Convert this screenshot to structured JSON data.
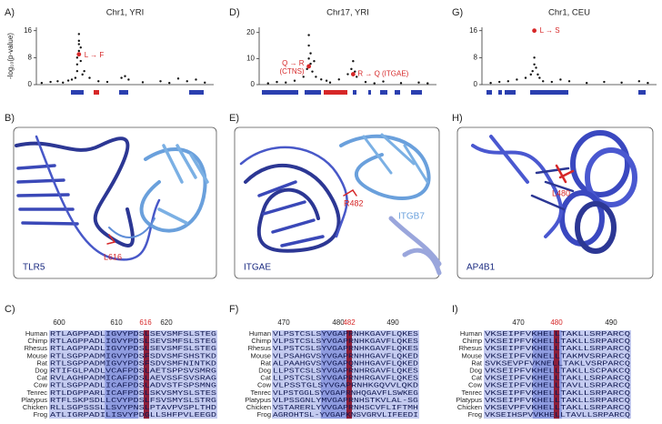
{
  "chart_data": [
    {
      "type": "scatter",
      "panel": "A)",
      "title": "Chr1, YRI",
      "ylabel": "-log₁₀(p-value)",
      "xlim": [
        0,
        100
      ],
      "ylim": [
        0,
        17
      ],
      "yticks": [
        0,
        8,
        16
      ],
      "series": [
        {
          "color": "#111111",
          "x": [
            3,
            8,
            12,
            15,
            18,
            20,
            22,
            23,
            23,
            23,
            24,
            24,
            24,
            24,
            25,
            25,
            26,
            27,
            30,
            35,
            40,
            48,
            50,
            52,
            60,
            70,
            75,
            80,
            85,
            90,
            95
          ],
          "values": [
            0.5,
            0.8,
            1,
            0.6,
            1.2,
            1.5,
            2,
            4,
            6,
            8,
            10,
            12,
            13,
            15,
            11,
            7,
            3,
            4,
            2,
            1,
            0.8,
            2,
            2.5,
            1.5,
            0.7,
            1,
            0.5,
            1.8,
            1,
            1.5,
            0.6
          ]
        },
        {
          "color": "#d62728",
          "x": [
            24
          ],
          "values": [
            9
          ]
        }
      ],
      "annotations": [
        "L → F"
      ]
    },
    {
      "type": "scatter",
      "panel": "D)",
      "title": "Chr17, YRI",
      "xlim": [
        0,
        100
      ],
      "ylim": [
        0,
        22
      ],
      "yticks": [
        0,
        10,
        20
      ],
      "series": [
        {
          "color": "#111111",
          "x": [
            5,
            10,
            15,
            20,
            25,
            27,
            28,
            28,
            28,
            29,
            29,
            30,
            31,
            32,
            35,
            38,
            40,
            45,
            50,
            52,
            53,
            54,
            55,
            60,
            65,
            70,
            80,
            90,
            95
          ],
          "values": [
            0.5,
            1,
            0.8,
            1.5,
            3,
            6,
            10,
            15,
            19,
            12,
            8,
            5,
            9,
            3,
            2,
            1.5,
            0.8,
            2,
            4,
            6,
            9,
            5,
            3,
            1,
            0.5,
            1.2,
            0.6,
            0.8,
            0.5
          ]
        },
        {
          "color": "#d62728",
          "x": [
            28,
            53
          ],
          "values": [
            7,
            4
          ]
        }
      ],
      "annotations": [
        "Q → R",
        "(CTNS)",
        "R → Q (ITGAE)"
      ]
    },
    {
      "type": "scatter",
      "panel": "G)",
      "title": "Chr1, CEU",
      "xlim": [
        0,
        100
      ],
      "ylim": [
        0,
        17
      ],
      "yticks": [
        0,
        8,
        16
      ],
      "series": [
        {
          "color": "#111111",
          "x": [
            5,
            10,
            15,
            20,
            25,
            28,
            29,
            30,
            30,
            31,
            32,
            33,
            35,
            40,
            45,
            50,
            60,
            70,
            80,
            90,
            95
          ],
          "values": [
            0.5,
            0.8,
            1,
            1.5,
            2,
            3,
            4,
            6,
            8,
            5,
            3,
            2,
            1,
            0.8,
            1.5,
            1,
            0.5,
            0.8,
            0.6,
            1,
            0.5
          ]
        },
        {
          "color": "#d62728",
          "x": [
            30
          ],
          "values": [
            16
          ]
        }
      ],
      "annotations": [
        "L → S"
      ]
    }
  ],
  "structures": [
    {
      "panel": "B)",
      "protein": "TLR5",
      "residue": "L616"
    },
    {
      "panel": "E)",
      "protein": "ITGAE",
      "residue": "R482",
      "partner": "ITGB7"
    },
    {
      "panel": "H)",
      "protein": "AP4B1",
      "residue": "L480"
    }
  ],
  "alignments": [
    {
      "panel": "C)",
      "positions": [
        600,
        610,
        616,
        620
      ],
      "position_colors": [
        "#222222",
        "#222222",
        "#d62728",
        "#222222"
      ],
      "species": [
        "Human",
        "Chimp",
        "Rhesus",
        "Mouse",
        "Rat",
        "Dog",
        "Cat",
        "Cow",
        "Tenrec",
        "Platypus",
        "Chicken",
        "Frog"
      ],
      "sequences": [
        "RTLAGPPADLIGVYPDSLSEVSMFSLSTEG",
        "RTLAGPPADLIGVYPDSLSEVSMFSLSTEG",
        "RTLAGPPADLIGVYPDSLSEVSMFSLSTEG",
        "RTLSGPPADMIGVYPDSFSDVSMFSHSTKD",
        "RTLSGPPADMIGVYPDSFSDVSMFNINTKD",
        "RTIFGLPADLVCAFPDSLAETSPPSVSMRG",
        "RVLAGHPADMICAFPDSLAEVSSFSVSRAG",
        "RTLSGPPADLICAFPDSLADVSTFSPSMNG",
        "RTLDGPPARLICAFPDSLSKVSMYSLSTES",
        "RTFLSKPSDLLCVYPDSLFSVSMYSLSTRG",
        "RLLSGPSSSLLSVYPNSLPTAVPVSPLTHD",
        "ATLIGRPADILISVYPDGLLSHFPVLEEGD"
      ]
    },
    {
      "panel": "F)",
      "positions": [
        470,
        480,
        482,
        490
      ],
      "position_colors": [
        "#222222",
        "#222222",
        "#d62728",
        "#222222"
      ],
      "species": [
        "Human",
        "Chimp",
        "Rhesus",
        "Mouse",
        "Rat",
        "Dog",
        "Cat",
        "Cow",
        "Tenrec",
        "Platypus",
        "Chicken",
        "Frog"
      ],
      "sequences": [
        "VLPSTCSLSYVGAPRNHKGAVFLQKES",
        "VLPSTCSLSYVGAPRNHKGAVFLQKES",
        "VLPSTCSLSYVGAPRNHKGAVFLQKES",
        "VLPSAHGVSYVGAPRNHHGAVFLQKED",
        "ALPAAHGVSYVGAPQNHHGAVFLQKED",
        "LLPSTCSLSYVGAPRNHRGAVFLQKES",
        "LLPSTCSLSYVGAPRNHRGAVFLQKES",
        "VLPSSTGLSYVGAPRNHKGQVVLQKD",
        "VLPSTGGLSYVGAPRNHQGAVFLSWKEG",
        "VLPSSGNLYMVGAPRNHSTKVLAL-SG",
        "VSTARERLYVVGAPRNHSCVFLIFTMH",
        "AGROHTSL-YVGAPKNSVGRVLIFEEDI"
      ]
    },
    {
      "panel": "I)",
      "positions": [
        470,
        480,
        490
      ],
      "position_colors": [
        "#222222",
        "#d62728",
        "#222222"
      ],
      "species": [
        "Human",
        "Chimp",
        "Rhesus",
        "Mouse",
        "Rat",
        "Dog",
        "Cat",
        "Cow",
        "Tenrec",
        "Platypus",
        "Chicken",
        "Frog"
      ],
      "sequences": [
        "VKSEIPFVKHELLTAKLLSRPARCQ",
        "VKSEIPFVKHELLTAKLLSRPARCQ",
        "VKSEIPFVKHELLTAKLLSRPARCQ",
        "VKSEIPFVKNELLTAKMVSRPARCQ",
        "SVKSEVPFVKNELLTAKLVSRPARCQ",
        "VKSEIPFVKHELLTAKLLSCPAKCQ",
        "VKSEIPFVKHELLTAKLLSRPARCQ",
        "VKSEIPFVKHELLTAVLLSRPARCQ",
        "VKSEIPFVKHELLTAKLLSRPARCQ",
        "VKSEIPFVKHELLTAKLLSRPARCQ",
        "VKSEVPFVKHELLTAKLLSRPARCQ",
        "VKSEIHSPVVKHELLTAVLLSRPARCQ"
      ]
    }
  ]
}
